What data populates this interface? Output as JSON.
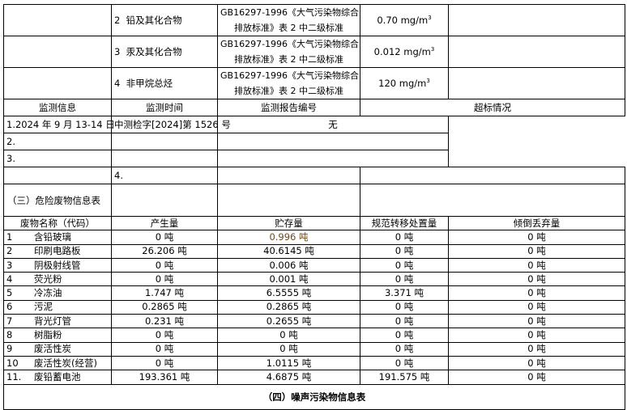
{
  "pollutants": [
    {
      "index": "2",
      "name": "铅及其化合物",
      "standard_line1": "GB16297-1996《大气污染物综合",
      "standard_line2": "排放标准》表 2 中二级标准",
      "limit": "0.70 mg/m",
      "unit_sup": "3"
    },
    {
      "index": "3",
      "name": "汞及其化合物",
      "standard_line1": "GB16297-1996《大气污染物综合",
      "standard_line2": "排放标准》表 2 中二级标准",
      "limit": "0.012 mg/m",
      "unit_sup": "3"
    },
    {
      "index": "4",
      "name": "非甲烷总烃",
      "standard_line1": "GB16297-1996《大气污染物综合",
      "standard_line2": "排放标准》表 2 中二级标准",
      "limit": "120 mg/m",
      "unit_sup": "3"
    }
  ],
  "monitoring": {
    "label": "监测信息",
    "headers": [
      "监测时间",
      "监测报告编号",
      "超标情况"
    ],
    "rows": [
      {
        "time": "1.2024 年 9 月 13-14 日",
        "report": "中测检字[2024]第 1526 号",
        "exceed": "无"
      },
      {
        "time": "2.",
        "report": "",
        "exceed": ""
      },
      {
        "time": "3.",
        "report": "",
        "exceed": ""
      },
      {
        "time": "4.",
        "report": "",
        "exceed": ""
      }
    ]
  },
  "hazardous_section_title": "（三）危险废物信息表",
  "waste": {
    "headers": [
      "废物名称（代码）",
      "产生量",
      "贮存量",
      "规范转移处置量",
      "倾倒丢弃量"
    ],
    "rows": [
      {
        "no": "1",
        "name": "含铅玻璃",
        "produced": "0 吨",
        "stored": "0.996 吨",
        "transferred": "0 吨",
        "dumped": "0 吨"
      },
      {
        "no": "2",
        "name": "印刷电路板",
        "produced": "26.206 吨",
        "stored": "40.6145 吨",
        "transferred": "0 吨",
        "dumped": "0 吨"
      },
      {
        "no": "3",
        "name": "阴极射线管",
        "produced": "0 吨",
        "stored": "0.006 吨",
        "transferred": "0 吨",
        "dumped": "0 吨"
      },
      {
        "no": "4",
        "name": "荧光粉",
        "produced": "0 吨",
        "stored": "0.001 吨",
        "transferred": "0 吨",
        "dumped": "0 吨"
      },
      {
        "no": "5",
        "name": "冷冻油",
        "produced": "1.747 吨",
        "stored": "6.5555 吨",
        "transferred": "3.371 吨",
        "dumped": "0 吨"
      },
      {
        "no": "6",
        "name": "污泥",
        "produced": "0.2865 吨",
        "stored": "0.2865 吨",
        "transferred": "0 吨",
        "dumped": "0 吨"
      },
      {
        "no": "7",
        "name": "背光灯管",
        "produced": "0.231 吨",
        "stored": "0.2655 吨",
        "transferred": "0 吨",
        "dumped": "0 吨"
      },
      {
        "no": "8",
        "name": "树脂粉",
        "produced": "0 吨",
        "stored": "0 吨",
        "transferred": "0 吨",
        "dumped": "0 吨"
      },
      {
        "no": "9",
        "name": "废活性炭",
        "produced": "0 吨",
        "stored": "0 吨",
        "transferred": "0 吨",
        "dumped": "0 吨"
      },
      {
        "no": "10",
        "name": "废活性炭(经营)",
        "produced": "0 吨",
        "stored": "1.0115 吨",
        "transferred": "0 吨",
        "dumped": "0 吨"
      },
      {
        "no": "11.",
        "name": "废铅蓄电池",
        "produced": "193.361 吨",
        "stored": "4.6875 吨",
        "transferred": "191.575 吨",
        "dumped": "0 吨"
      }
    ]
  },
  "noise_section_title": "（四）噪声污染物信息表"
}
